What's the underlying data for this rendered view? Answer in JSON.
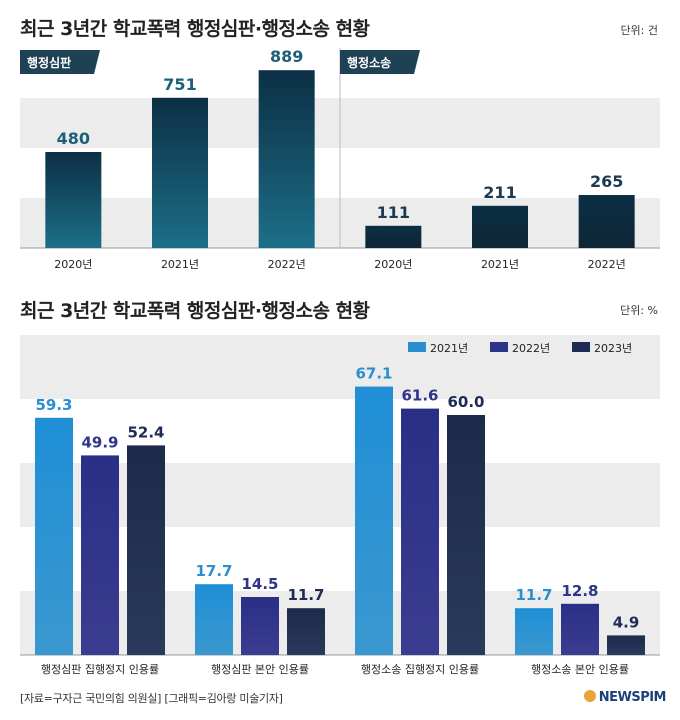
{
  "unit_top": "단위: 건",
  "unit_bottom": "단위: %",
  "footer": {
    "source": "[자료=구자근 국민의힘 의원실]",
    "graphic": "[그래픽=김아랑 미술기자]"
  },
  "logo": {
    "text": "NEWSPIM",
    "color": "#1f3f7a"
  },
  "colors": {
    "top_bar_dark": "#0c2f44",
    "top_bar_teal": "#1c6f88",
    "series": [
      "#2a8fd1",
      "#2e3589",
      "#1f2b55"
    ],
    "band": "#ececec"
  },
  "chart_data": [
    {
      "type": "bar",
      "title": "최근 3년간 학교폭력 행정심판·행정소송 현황",
      "panels": [
        {
          "label": "행정심판",
          "categories": [
            "2020년",
            "2021년",
            "2022년"
          ],
          "values": [
            480,
            751,
            889
          ]
        },
        {
          "label": "행정소송",
          "categories": [
            "2020년",
            "2021년",
            "2022년"
          ],
          "values": [
            111,
            211,
            265
          ]
        }
      ],
      "ylim": [
        0,
        1000
      ],
      "grid": "alternating bands"
    },
    {
      "type": "bar",
      "title": "최근 3년간 학교폭력 행정심판·행정소송 현황",
      "categories": [
        "행정심판 집행정지 인용률",
        "행정심판 본안 인용률",
        "행정소송 집행정지 인용률",
        "행정소송 본안 인용률"
      ],
      "series": [
        {
          "name": "2021년",
          "values": [
            59.3,
            17.7,
            67.1,
            11.7
          ]
        },
        {
          "name": "2022년",
          "values": [
            49.9,
            14.5,
            61.6,
            12.8
          ]
        },
        {
          "name": "2023년",
          "values": [
            52.4,
            11.7,
            60.0,
            4.9
          ]
        }
      ],
      "ylim": [
        0,
        80
      ],
      "legend": "top-right",
      "grid": "alternating bands"
    }
  ]
}
